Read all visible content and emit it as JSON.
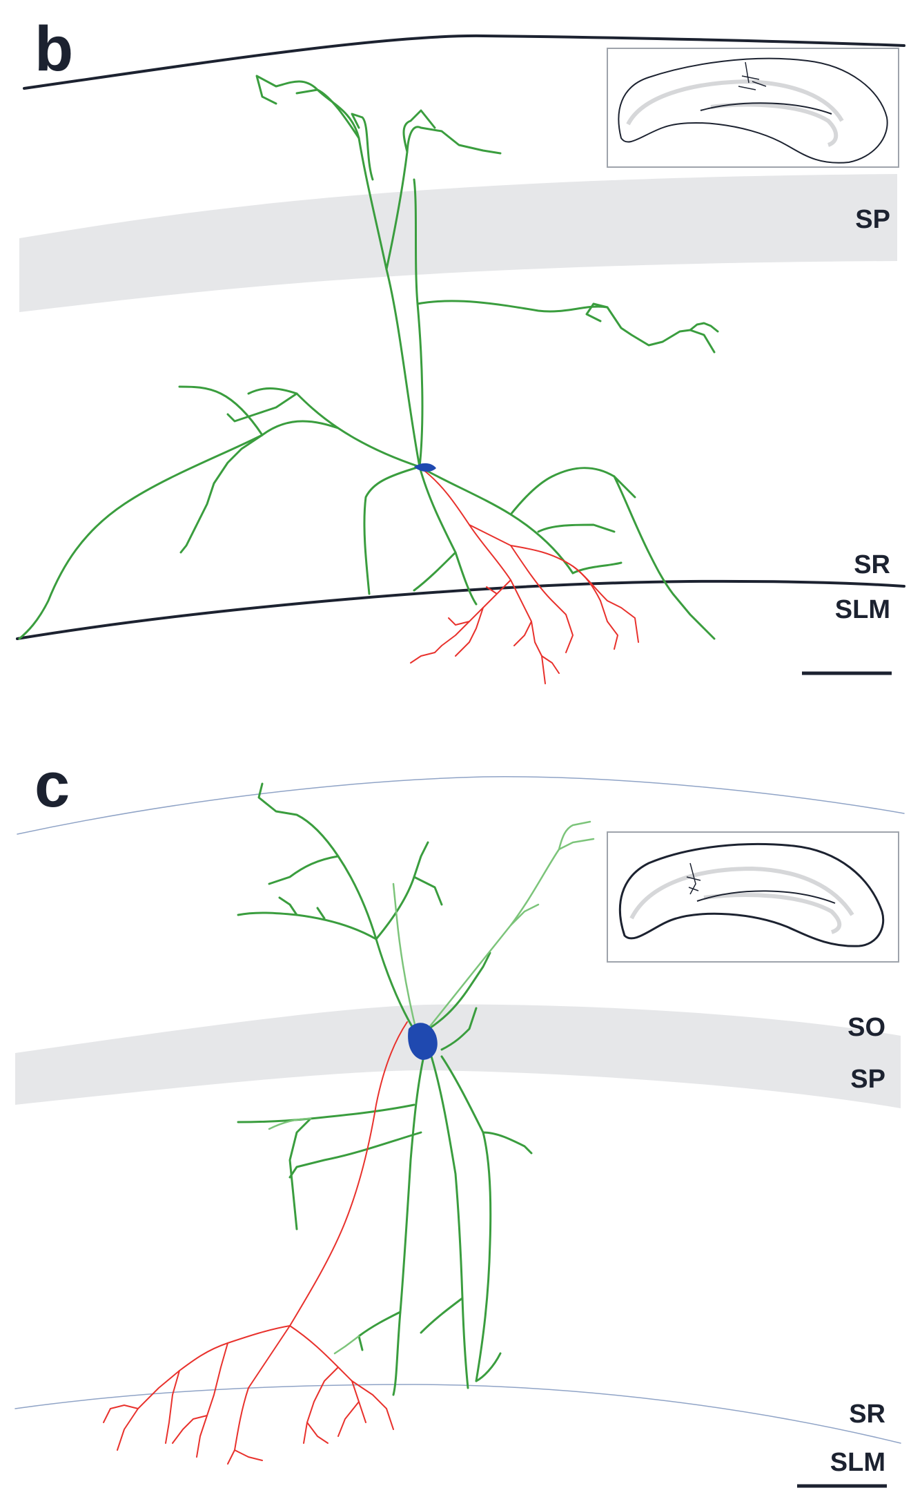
{
  "colors": {
    "dendrite": "#3a9d3e",
    "dendrite_light": "#7cc47a",
    "axon": "#e8312c",
    "soma": "#1f49b0",
    "boundary_dark": "#1c2230",
    "boundary_light": "#8fa3c6",
    "pyramidal_band": "#e6e7e9",
    "inset_band": "#d6d7d9"
  },
  "panels": [
    {
      "letter": "b",
      "labels": {
        "sp": "SP",
        "sr": "SR",
        "slm": "SLM"
      },
      "scale_bar": true,
      "inset": "hippocampus-outline"
    },
    {
      "letter": "c",
      "labels": {
        "so": "SO",
        "sp": "SP",
        "sr": "SR",
        "slm": "SLM"
      },
      "scale_bar": true,
      "inset": "hippocampus-outline"
    }
  ]
}
